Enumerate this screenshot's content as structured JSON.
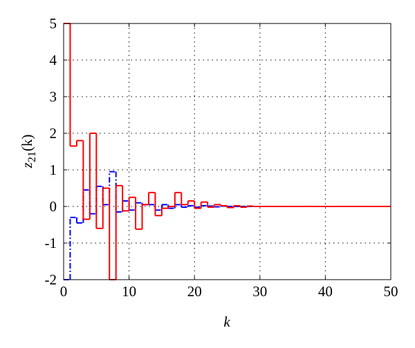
{
  "chart_data": {
    "type": "stairs",
    "xlabel": "k",
    "ylabel": {
      "base": "z",
      "sub": "21",
      "arg": "(k)"
    },
    "x": [
      0,
      1,
      2,
      3,
      4,
      5,
      6,
      7,
      8,
      9,
      10,
      11,
      12,
      13,
      14,
      15,
      16,
      17,
      18,
      19,
      20,
      21,
      22,
      23,
      24,
      25,
      26,
      27,
      28,
      29,
      30,
      31,
      32,
      33,
      34,
      35,
      36,
      37,
      38,
      39,
      40,
      41,
      42,
      43,
      44,
      45,
      46,
      47,
      48,
      49
    ],
    "series": [
      {
        "color": "#0000ff",
        "dash": true,
        "values": [
          -2,
          -0.3,
          -0.45,
          0.45,
          -0.2,
          0.55,
          0.05,
          0.95,
          -0.15,
          0.15,
          -0.1,
          0.1,
          0.05,
          0.05,
          -0.1,
          0.05,
          -0.05,
          0.05,
          -0.02,
          0.02,
          -0.02,
          0.02,
          0.01,
          -0.01,
          0.01,
          0,
          0,
          0,
          0,
          0,
          0,
          0,
          0,
          0,
          0,
          0,
          0,
          0,
          0,
          0,
          0,
          0,
          0,
          0,
          0,
          0,
          0,
          0,
          0,
          0
        ]
      },
      {
        "color": "#ff0000",
        "dash": false,
        "values": [
          5,
          1.65,
          1.8,
          -0.35,
          2.0,
          -0.6,
          0.5,
          -2,
          0.57,
          -0.12,
          0.25,
          -0.62,
          0.05,
          0.38,
          -0.25,
          -0.05,
          0,
          0.38,
          0.05,
          0.15,
          -0.05,
          0.12,
          -0.02,
          0.05,
          0.02,
          -0.03,
          0.02,
          -0.02,
          0.01,
          0,
          0,
          0,
          0,
          0,
          0,
          0,
          0,
          0,
          0,
          0,
          0,
          0,
          0,
          0,
          0,
          0,
          0,
          0,
          0,
          0
        ]
      }
    ],
    "xlim": [
      0,
      50
    ],
    "xticks": [
      0,
      10,
      20,
      30,
      40,
      50
    ],
    "ylim": [
      -2,
      5
    ],
    "yticks": [
      -2,
      -1,
      0,
      1,
      2,
      3,
      4,
      5
    ],
    "grid": true
  }
}
